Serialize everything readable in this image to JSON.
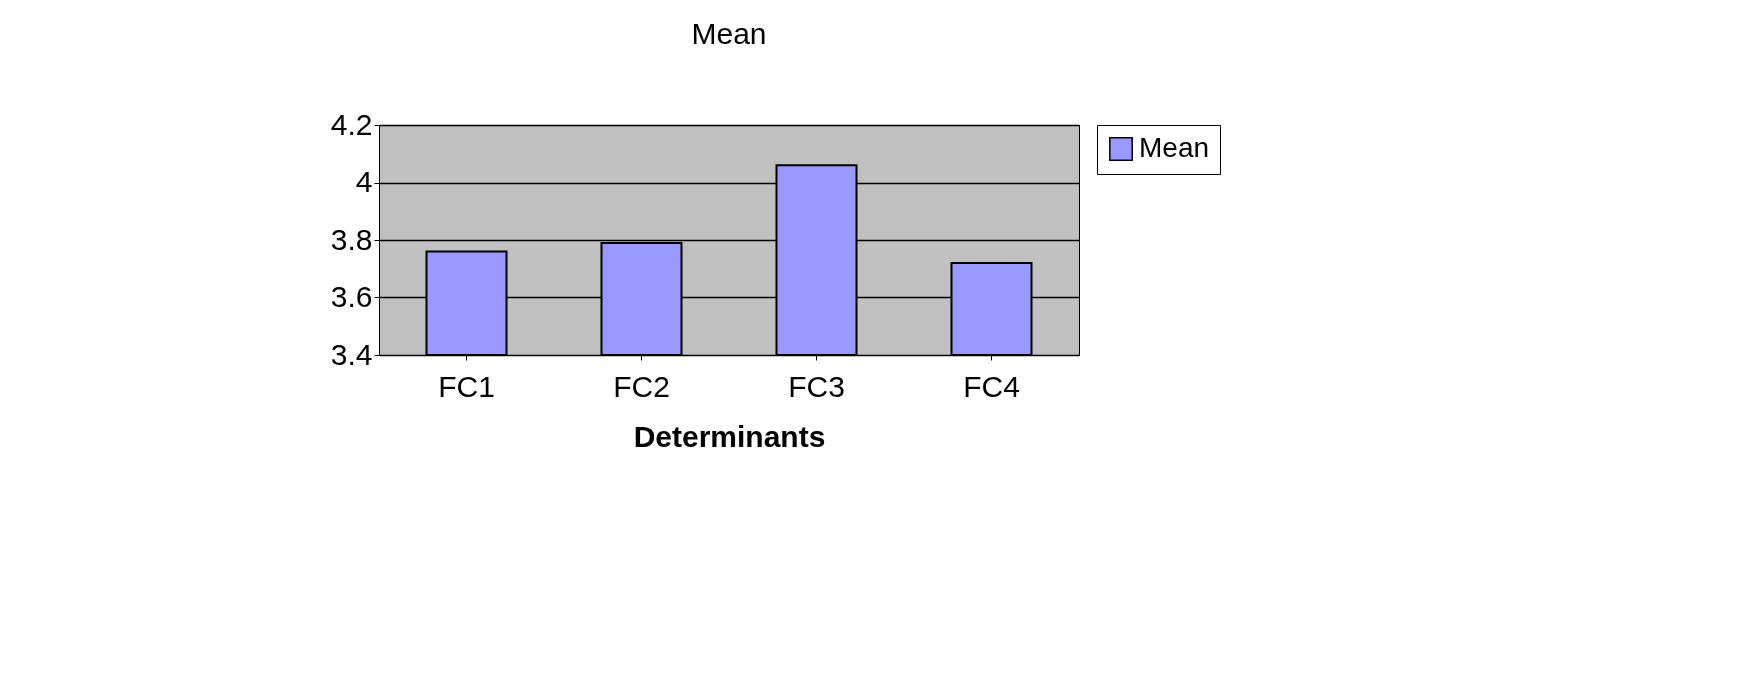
{
  "chart_data": {
    "type": "bar",
    "title": "Mean",
    "xlabel": "Determinants",
    "categories": [
      "FC1",
      "FC2",
      "FC3",
      "FC4"
    ],
    "series": [
      {
        "name": "Mean",
        "color": "#9999ff",
        "values": [
          3.76,
          3.79,
          4.06,
          3.72
        ]
      }
    ],
    "ylim": [
      3.4,
      4.2
    ],
    "yticks": [
      3.4,
      3.6,
      3.8,
      4,
      4.2
    ],
    "grid": "y",
    "legend": "right"
  }
}
